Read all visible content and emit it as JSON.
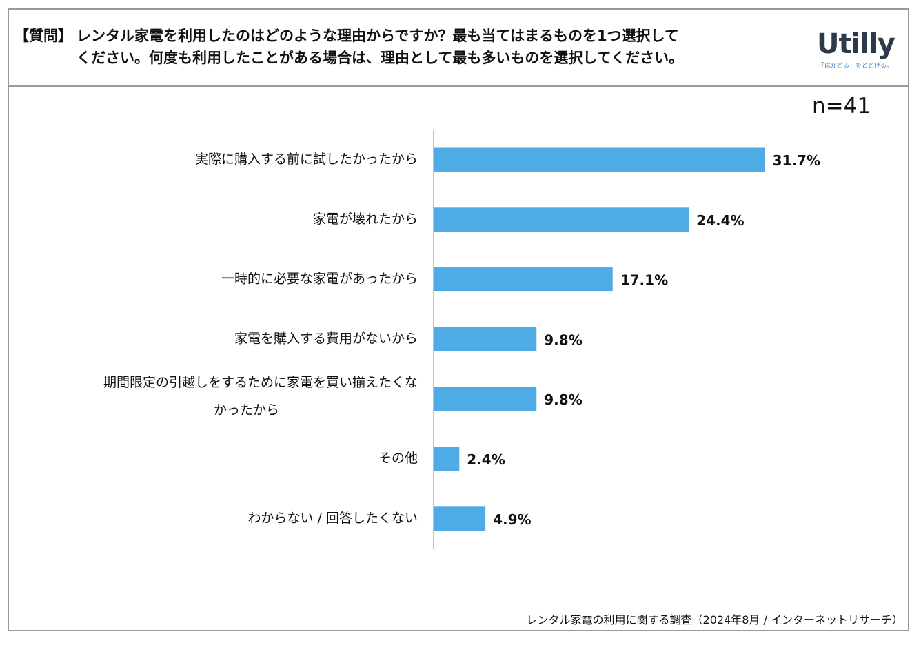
{
  "header": {
    "tag": "【質問】",
    "question_line1": "レンタル家電を利用したのはどのような理由からですか？最も当てはまるものを1つ選択して",
    "question_line2": "ください。何度も利用したことがある場合は、理由として最も多いものを選択してください。"
  },
  "logo": {
    "word": "Utilly",
    "tagline": "「はかどる」をとどける。"
  },
  "sample": "n=41",
  "source": "レンタル家電の利用に関する調査（2024年8月 / インターネットリサーチ）",
  "colors": {
    "bar": "#4eabe6",
    "axis": "#808080",
    "border": "#9a9a9a"
  },
  "chart_data": {
    "type": "bar",
    "orientation": "horizontal",
    "categories": [
      [
        "実際に購入する前に試したかったから"
      ],
      [
        "家電が壊れたから"
      ],
      [
        "一時的に必要な家電があったから"
      ],
      [
        "家電を購入する費用がないから"
      ],
      [
        "期間限定の引越しをするために家電を買い揃えたくな",
        "かったから"
      ],
      [
        "その他"
      ],
      [
        "わからない / 回答したくない"
      ]
    ],
    "values": [
      31.7,
      24.4,
      17.1,
      9.8,
      9.8,
      2.4,
      4.9
    ],
    "value_labels": [
      "31.7%",
      "24.4%",
      "17.1%",
      "9.8%",
      "9.8%",
      "2.4%",
      "4.9%"
    ],
    "unit": "%",
    "xlim": [
      0,
      100
    ],
    "grid": false,
    "legend": "none"
  }
}
